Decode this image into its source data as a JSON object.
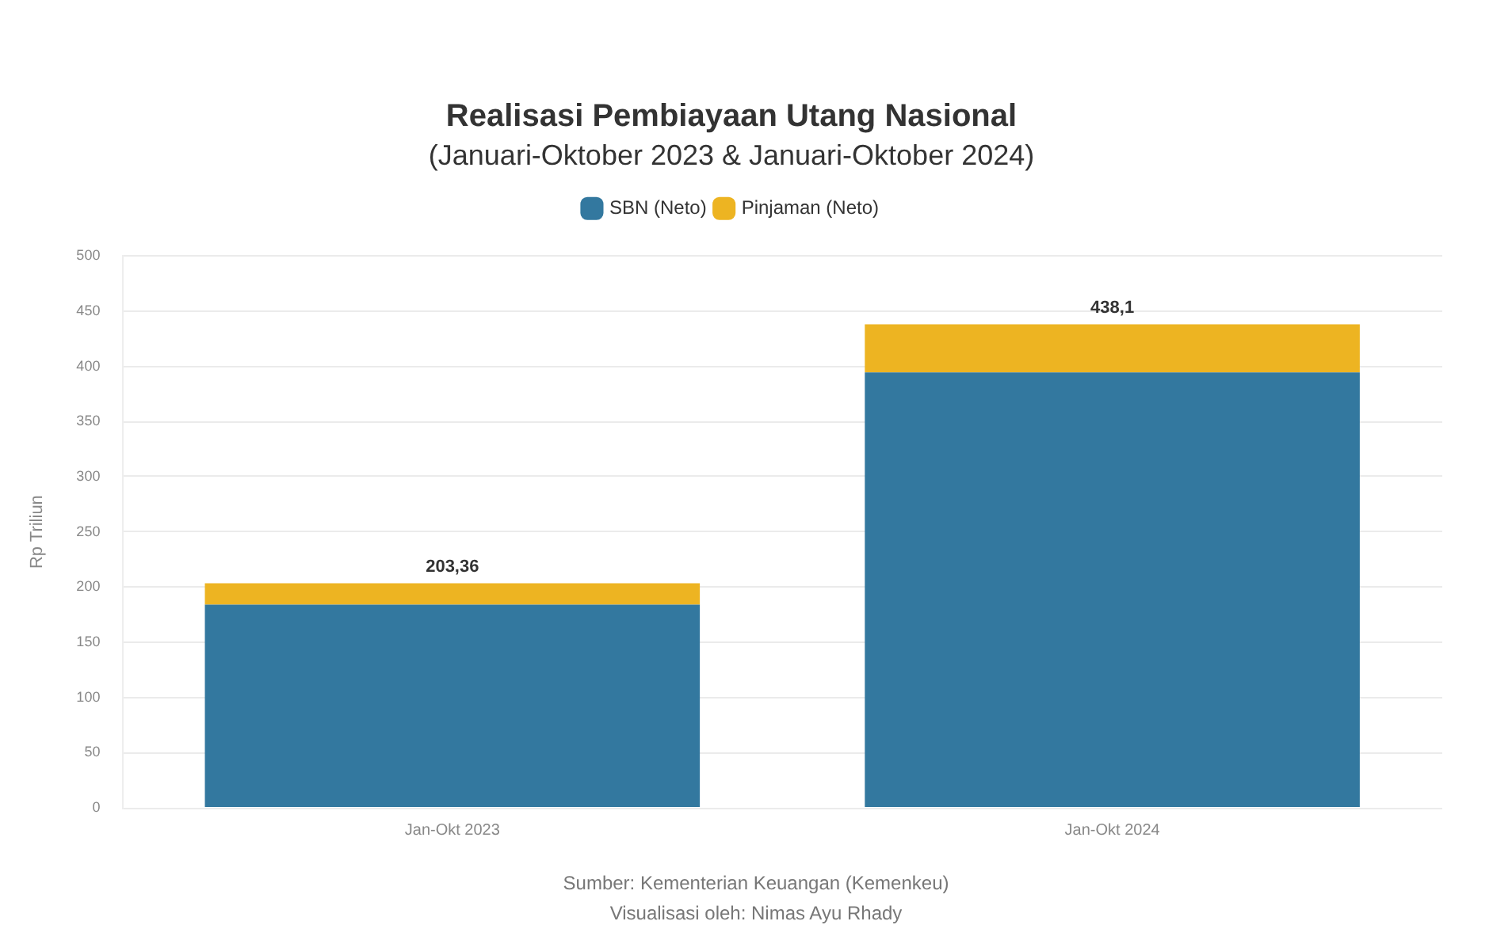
{
  "chart_data": {
    "type": "bar",
    "title": "Realisasi Pembiayaan Utang Nasional",
    "subtitle": "(Januari-Oktober 2023 & Januari-Oktober 2024)",
    "ylabel": "Rp Triliun",
    "categories": [
      "Jan-Okt 2023",
      "Jan-Okt 2024"
    ],
    "series": [
      {
        "name": "SBN (Neto)",
        "color": "#33789f",
        "values": [
          184,
          394.4
        ]
      },
      {
        "name": "Pinjaman (Neto)",
        "color": "#edb422",
        "values": [
          19.36,
          43.7
        ]
      }
    ],
    "stacked": true,
    "totals": [
      "203,36",
      "438,1"
    ],
    "ylim": [
      0,
      500
    ],
    "yticks": [
      0,
      50,
      100,
      150,
      200,
      250,
      300,
      350,
      400,
      450,
      500
    ],
    "grid": "y",
    "legend": "top",
    "annotations": [
      "Sumber: Kementerian Keuangan (Kemenkeu)",
      "Visualisasi oleh: Nimas Ayu Rhady"
    ]
  }
}
